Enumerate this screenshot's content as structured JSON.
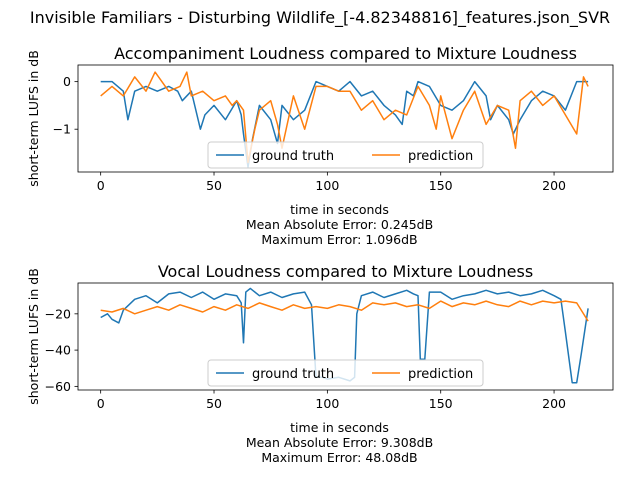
{
  "figure": {
    "suptitle": "Invisible Familiars - Disturbing Wildlife_[-4.82348816]_features.json_SVR"
  },
  "chart_data": [
    {
      "type": "line",
      "title": "Accompaniment Loudness compared to Mixture Loudness",
      "xlabel": "time in seconds",
      "ylabel": "short-term LUFS in dB",
      "xlim": [
        -10,
        226
      ],
      "ylim": [
        -1.9,
        0.35
      ],
      "xticks": [
        0,
        50,
        100,
        150,
        200
      ],
      "yticks": [
        0,
        -1
      ],
      "legend": {
        "placement": "lower center",
        "ncol": 2
      },
      "annotations": [
        "Mean Absolute Error: 0.245dB",
        "Maximum Error: 1.096dB"
      ],
      "series": [
        {
          "name": "ground truth",
          "color": "#1f77b4",
          "x": [
            0,
            5,
            10,
            12,
            15,
            20,
            25,
            30,
            34,
            36,
            40,
            44,
            46,
            50,
            55,
            60,
            62,
            63,
            65,
            67,
            70,
            75,
            78,
            80,
            85,
            90,
            95,
            100,
            105,
            110,
            115,
            120,
            125,
            130,
            133,
            135,
            138,
            140,
            145,
            150,
            155,
            160,
            165,
            170,
            172,
            175,
            180,
            182,
            185,
            190,
            195,
            200,
            205,
            210,
            215
          ],
          "y": [
            0,
            0,
            -0.2,
            -0.8,
            -0.2,
            -0.1,
            -0.2,
            -0.1,
            -0.2,
            -0.4,
            -0.2,
            -1.0,
            -0.7,
            -0.5,
            -0.8,
            -0.4,
            -0.7,
            -1.1,
            -1.8,
            -1.2,
            -0.5,
            -0.8,
            -1.3,
            -0.5,
            -0.8,
            -0.6,
            0.0,
            -0.1,
            -0.2,
            0.0,
            -0.3,
            -0.2,
            -0.5,
            -0.7,
            -0.9,
            -0.2,
            -0.3,
            0.0,
            -0.1,
            -0.5,
            -0.6,
            -0.4,
            0.0,
            -0.3,
            -0.8,
            -0.5,
            -0.8,
            -1.1,
            -0.8,
            -0.4,
            -0.2,
            -0.3,
            -0.6,
            0.0,
            0.0
          ]
        },
        {
          "name": "prediction",
          "color": "#ff7f0e",
          "x": [
            0,
            5,
            10,
            15,
            20,
            24,
            30,
            35,
            38,
            40,
            45,
            50,
            55,
            58,
            60,
            63,
            65,
            68,
            70,
            75,
            78,
            80,
            85,
            90,
            95,
            100,
            105,
            110,
            115,
            120,
            125,
            130,
            135,
            140,
            145,
            148,
            150,
            155,
            160,
            165,
            170,
            175,
            180,
            183,
            185,
            190,
            195,
            200,
            205,
            210,
            213,
            215
          ],
          "y": [
            -0.3,
            -0.1,
            -0.3,
            0.1,
            -0.2,
            0.2,
            -0.2,
            -0.1,
            0.2,
            -0.3,
            -0.2,
            -0.4,
            -0.3,
            -0.5,
            -0.4,
            -0.6,
            -1.7,
            -1.0,
            -0.6,
            -0.4,
            -0.9,
            -1.4,
            -0.3,
            -1.0,
            -0.1,
            -0.1,
            -0.2,
            -0.2,
            -0.6,
            -0.4,
            -0.8,
            -0.6,
            -0.7,
            -0.1,
            -0.5,
            -1.0,
            -0.3,
            -1.2,
            -0.6,
            -0.2,
            -0.9,
            -0.5,
            -0.6,
            -1.4,
            -0.4,
            -0.2,
            -0.5,
            -0.3,
            -0.7,
            -1.1,
            0.1,
            -0.1
          ]
        }
      ]
    },
    {
      "type": "line",
      "title": "Vocal Loudness compared to Mixture Loudness",
      "xlabel": "time in seconds",
      "ylabel": "short-term LUFS in dB",
      "xlim": [
        -10,
        226
      ],
      "ylim": [
        -62,
        -3
      ],
      "xticks": [
        0,
        50,
        100,
        150,
        200
      ],
      "yticks": [
        -20,
        -40,
        -60
      ],
      "legend": {
        "placement": "lower center",
        "ncol": 2
      },
      "annotations": [
        "Mean Absolute Error: 9.308dB",
        "Maximum Error: 48.08dB"
      ],
      "series": [
        {
          "name": "ground truth",
          "color": "#1f77b4",
          "x": [
            0,
            3,
            5,
            8,
            10,
            15,
            20,
            25,
            30,
            35,
            40,
            45,
            50,
            55,
            60,
            62,
            63,
            64,
            66,
            70,
            75,
            80,
            85,
            90,
            93,
            95,
            98,
            100,
            105,
            110,
            112,
            113,
            115,
            120,
            125,
            130,
            135,
            138,
            140,
            141,
            143,
            145,
            150,
            155,
            160,
            165,
            170,
            175,
            180,
            185,
            190,
            195,
            200,
            203,
            205,
            208,
            210,
            212,
            215
          ],
          "y": [
            -22,
            -20,
            -23,
            -25,
            -18,
            -12,
            -10,
            -14,
            -9,
            -8,
            -11,
            -8,
            -12,
            -9,
            -10,
            -14,
            -36,
            -8,
            -6,
            -10,
            -8,
            -11,
            -9,
            -8,
            -15,
            -55,
            -55,
            -56,
            -55,
            -57,
            -55,
            -20,
            -10,
            -8,
            -11,
            -9,
            -7,
            -9,
            -10,
            -45,
            -45,
            -8,
            -8,
            -12,
            -10,
            -9,
            -7,
            -9,
            -8,
            -10,
            -9,
            -7,
            -10,
            -12,
            -30,
            -58,
            -58,
            -42,
            -17
          ]
        },
        {
          "name": "prediction",
          "color": "#ff7f0e",
          "x": [
            0,
            5,
            10,
            15,
            20,
            25,
            30,
            35,
            40,
            45,
            50,
            55,
            60,
            65,
            70,
            75,
            80,
            85,
            90,
            95,
            100,
            105,
            110,
            115,
            120,
            125,
            130,
            135,
            140,
            145,
            150,
            155,
            160,
            165,
            170,
            175,
            180,
            185,
            190,
            195,
            200,
            205,
            210,
            215
          ],
          "y": [
            -18,
            -19,
            -17,
            -20,
            -18,
            -16,
            -18,
            -15,
            -17,
            -19,
            -16,
            -18,
            -15,
            -17,
            -14,
            -16,
            -18,
            -15,
            -17,
            -16,
            -17,
            -15,
            -16,
            -18,
            -14,
            -15,
            -14,
            -16,
            -15,
            -17,
            -13,
            -16,
            -14,
            -15,
            -13,
            -15,
            -16,
            -13,
            -15,
            -13,
            -14,
            -13,
            -14,
            -24
          ]
        }
      ]
    }
  ]
}
